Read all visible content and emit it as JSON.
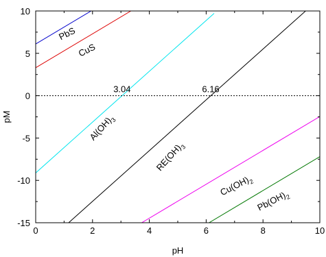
{
  "chart_data": {
    "type": "line",
    "xlabel": "pH",
    "ylabel": "pM",
    "xlim": [
      0,
      10
    ],
    "ylim": [
      -15,
      10
    ],
    "x_ticks": [
      0,
      2,
      4,
      6,
      8,
      10
    ],
    "y_ticks": [
      -15,
      -10,
      -5,
      0,
      5,
      10
    ],
    "grid": false,
    "series": [
      {
        "name": "PbS",
        "color": "#0000cc",
        "points": [
          [
            0,
            6.1
          ],
          [
            1.95,
            10
          ]
        ]
      },
      {
        "name": "CuS",
        "color": "#dd0000",
        "points": [
          [
            0,
            3.3
          ],
          [
            3.35,
            10
          ]
        ]
      },
      {
        "name": "Al(OH)3",
        "color": "#00e5ee",
        "points": [
          [
            0,
            -9.12
          ],
          [
            6.28,
            9.72
          ]
        ]
      },
      {
        "name": "RE(OH)3",
        "color": "#000000",
        "points": [
          [
            1.16,
            -15
          ],
          [
            9.5,
            10
          ]
        ]
      },
      {
        "name": "Cu(OH)2",
        "color": "#ee00ee",
        "points": [
          [
            3.73,
            -15
          ],
          [
            10,
            -2.46
          ]
        ]
      },
      {
        "name": "Pb(OH)2",
        "color": "#007700",
        "points": [
          [
            6.1,
            -15
          ],
          [
            10,
            -7.2
          ]
        ]
      }
    ],
    "reference_line": {
      "y": 0,
      "style": "dotted"
    },
    "annotations": [
      {
        "text": "3.04",
        "x": 3.04,
        "y": 0
      },
      {
        "text": "6.16",
        "x": 6.16,
        "y": 0
      }
    ],
    "series_labels": [
      {
        "main": "PbS",
        "sub": "",
        "x": 1.15,
        "y": 7.0,
        "angle": -27
      },
      {
        "main": "CuS",
        "sub": "",
        "x": 1.85,
        "y": 5.05,
        "angle": -27
      },
      {
        "main": "Al(OH)",
        "sub": "3",
        "x": 2.4,
        "y": -4.0,
        "angle": -48
      },
      {
        "main": "RE(OH)",
        "sub": "3",
        "x": 4.8,
        "y": -7.4,
        "angle": -48
      },
      {
        "main": "Cu(OH)",
        "sub": "2",
        "x": 7.1,
        "y": -10.9,
        "angle": -27
      },
      {
        "main": "Pb(OH)",
        "sub": "2",
        "x": 8.4,
        "y": -12.7,
        "angle": -27
      }
    ]
  }
}
